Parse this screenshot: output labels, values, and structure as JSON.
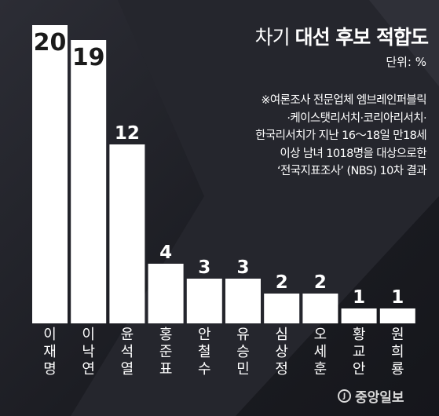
{
  "title_light": "차기 ",
  "title_bold": "대선 후보 적합도",
  "unit_label": "단위: %",
  "note_lines": [
    "※여론조사 전문업체 엠브레인퍼블릭",
    "·케이스탯리서치·코리아리서치·",
    "한국리서치가 지난 16～18일 만18세",
    "이상 남녀 1018명을 대상으로한",
    "‘전국지표조사’ (NBS) 10차 결과"
  ],
  "logo_text": "중앙일보",
  "colors": {
    "background": "#1e1f25",
    "bar": "#ffffff",
    "text": "#ffffff"
  },
  "chart_data": {
    "type": "bar",
    "title": "차기 대선 후보 적합도",
    "unit": "%",
    "categories": [
      "이재명",
      "이낙연",
      "윤석열",
      "홍준표",
      "안철수",
      "유승민",
      "심상정",
      "오세훈",
      "황교안",
      "원희룡"
    ],
    "values": [
      20,
      19,
      12,
      4,
      3,
      3,
      2,
      2,
      1,
      1
    ],
    "ylim": [
      0,
      20
    ],
    "grid": false
  }
}
